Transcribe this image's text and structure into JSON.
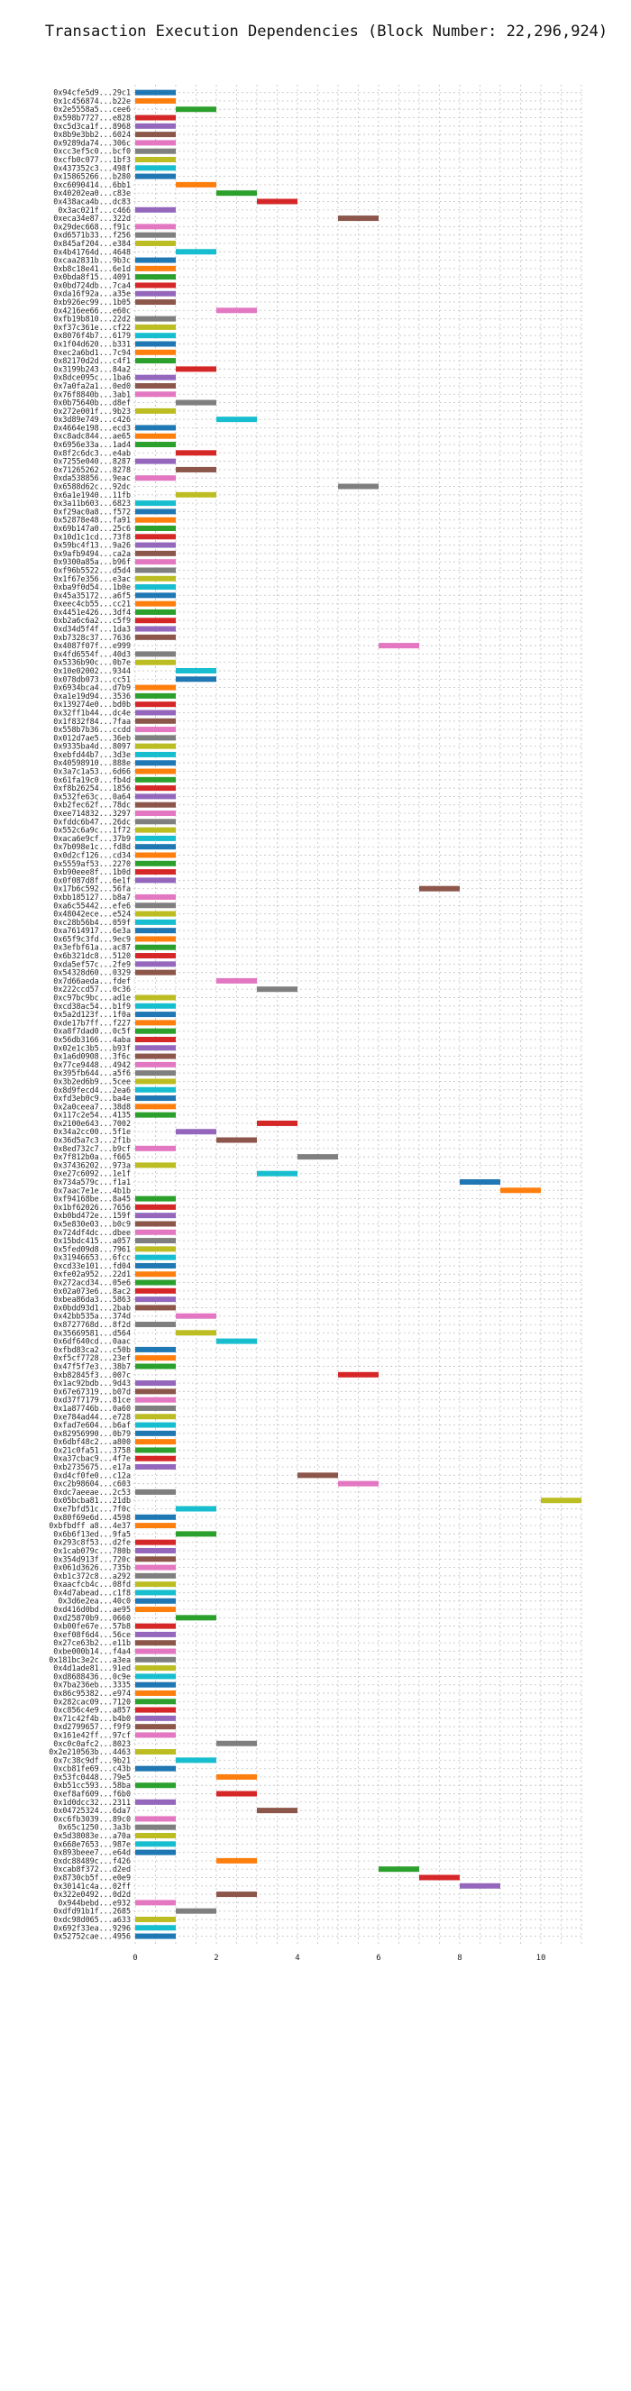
{
  "chart_data": {
    "type": "bar",
    "orientation": "horizontal",
    "title": "Transaction Execution Dependencies (Block Number: 22,296,924)",
    "xlabel": "",
    "ylabel": "",
    "xlim": [
      0,
      11.0
    ],
    "xticks": [
      0,
      2,
      4,
      6,
      8,
      10
    ],
    "grid": true,
    "bar_length": 1,
    "palette": [
      "#1f77b4",
      "#ff7f0e",
      "#2ca02c",
      "#d62728",
      "#9467bd",
      "#8c564b",
      "#e377c2",
      "#7f7f7f",
      "#bcbd22",
      "#17becf"
    ],
    "categories": [
      "0x94cfe5d9...29c1",
      "0x1c456874...b22e",
      "0x2e5558a5...cee6",
      "0x598b7727...e828",
      "0xc5d3ca1f...8968",
      "0x8b9e3bb2...6024",
      "0x9289da74...306c",
      "0xcc3ef5c0...bcf0",
      "0xcfb0c077...1bf3",
      "0x437352c3...498f",
      "0x15865266...b280",
      "0xc6090414...6bb1",
      "0x40202ea0...c83e",
      "0x438aca4b...dc83",
      "0x3ac021f...c466",
      "0xeca34e87...322d",
      "0x29dec668...f91c",
      "0xd6571b33...f256",
      "0x845af204...e384",
      "0x4b41764d...4648",
      "0xcaa2831b...9b3c",
      "0xb8c18e41...6e1d",
      "0x0bda8f15...4091",
      "0x0bd724db...7ca4",
      "0xda16f92a...a35e",
      "0xb926ec99...1b05",
      "0x4216ee66...e60c",
      "0xfb19b810...22d2",
      "0xf37c361e...cf22",
      "0x8076f4b7...6179",
      "0x1f04d620...b331",
      "0xec2a6bd1...7c94",
      "0x82170d2d...c4f1",
      "0x3199b243...84a2",
      "0x8dce095c...1ba6",
      "0x7a0fa2a1...0ed0",
      "0x76f8840b...3ab1",
      "0x0b75640b...d8ef",
      "0x272e001f...9b23",
      "0x3d89e749...c426",
      "0x4664e198...ecd3",
      "0xc8adc844...ae65",
      "0x6956e33a...1ad4",
      "0x8f2c6dc3...e4ab",
      "0x7255e040...8287",
      "0x71265262...8278",
      "0xda538856...9eac",
      "0x6588d62c...92dc",
      "0x6a1e1940...11fb",
      "0x3a11b603...6823",
      "0xf29ac0a8...f572",
      "0x52878e48...fa91",
      "0x69b147a0...25c6",
      "0x10d1c1cd...73f8",
      "0x59bc4f13...9a26",
      "0x9afb9494...ca2a",
      "0x9300a85a...b96f",
      "0xf96b5522...d5d4",
      "0x1f67e356...e3ac",
      "0xba9f0d54...1b0e",
      "0x45a35172...a6f5",
      "0xeec4cb55...cc21",
      "0x4451e426...3df4",
      "0xb2a6c6a2...c5f9",
      "0xd34d5f4f...1da3",
      "0xb7328c37...7636",
      "0x4087f07f...e999",
      "0x4fd6554f...40d3",
      "0x5336b90c...0b7e",
      "0x10e02002...9344",
      "0x078db073...cc51",
      "0x6934bca4...d7b9",
      "0xa1e19d94...3536",
      "0x139274e0...bd0b",
      "0x32ff1b44...dc4e",
      "0x1f832f84...7faa",
      "0x558b7b36...ccdd",
      "0x012d7ae5...36eb",
      "0x9335ba4d...8097",
      "0xebfd44b7...3d3e",
      "0x40598910...888e",
      "0x3a7c1a53...6d66",
      "0x61fa19c0...fb4d",
      "0xf8b26254...1856",
      "0x532fe63c...0a64",
      "0xb2fec62f...78dc",
      "0xee714832...3297",
      "0xfddc6b47...26dc",
      "0x552c6a9c...1f72",
      "0xaca6e9cf...37b9",
      "0x7b098e1c...fd8d",
      "0x0d2cf126...cd34",
      "0x5559af53...2270",
      "0xb90eee8f...1b0d",
      "0x0f087d8f...6e1f",
      "0x17b6c592...56fa",
      "0xbb185127...b8a7",
      "0xa6c55442...efe6",
      "0x48042ece...e524",
      "0xc28b56b4...059f",
      "0xa7614917...6e3a",
      "0x65f9c3fd...9ec9",
      "0x3efbf61a...ac87",
      "0x6b321dc8...5120",
      "0xda5ef57c...2fe9",
      "0x54328d60...0329",
      "0x7d66aeda...fdef",
      "0x222ccd57...0c36",
      "0xc97bc9bc...ad1e",
      "0xcd38ac54...b1f9",
      "0x5a2d123f...1f0a",
      "0xde17b7ff...f227",
      "0xa8f7dad0...0c5f",
      "0x56db3166...4aba",
      "0x02e1c3b5...b93f",
      "0x1a6d0908...3f6c",
      "0x77ce9448...4942",
      "0x395fb644...a5f6",
      "0x3b2ed6b9...5cee",
      "0x8d9fecd4...2ea6",
      "0xfd3eb0c9...ba4e",
      "0x2a0ceea7...38d8",
      "0x117c2e54...4135",
      "0x2100e643...7002",
      "0x34a2cc00...5f1e",
      "0x36d5a7c3...2f1b",
      "0x8ed732c7...b9cf",
      "0x7f812b0a...f665",
      "0x37436202...973a",
      "0xe27c6092...1e1f",
      "0x734a579c...f1a1",
      "0x7aac7e1e...4b1b",
      "0xf94168be...8a45",
      "0x1bf62026...7656",
      "0xb0bd472e...159f",
      "0x5e830e03...b0c9",
      "0x724df4dc...dbee",
      "0x15bdc415...a057",
      "0x5fed09d8...7961",
      "0x31946653...6fcc",
      "0xcd33e101...fd04",
      "0xfe02a952...22d1",
      "0x272acd34...05e6",
      "0x02a073e6...8ac2",
      "0xbea86da3...5863",
      "0x0bdd93d1...2bab",
      "0x42bb535a...374d",
      "0x8727768d...8f2d",
      "0x35669581...d564",
      "0x6df640cd...0aac",
      "0xfbd83ca2...c50b",
      "0xf5cf7728...23ef",
      "0x47f5f7e3...38b7",
      "0xb82845f3...007c",
      "0x1ac92bdb...9d43",
      "0x67e67319...b07d",
      "0xd37f7179...81ce",
      "0x1a87746b...0a60",
      "0xe784ad44...e728",
      "0xfad7e604...b6af",
      "0x82956990...0b79",
      "0x6dbf48c2...a800",
      "0x21c0fa51...3758",
      "0xa37cbac9...4f7e",
      "0xb2735675...e17a",
      "0xd4cf0fe0...c12a",
      "0xc2b98604...c603",
      "0xdc7aeeae...2c53",
      "0x05bcba81...21db",
      "0xe7bfd51c...7f0c",
      "0x80f69e6d...4598",
      "0xbfbdff a8...4e37",
      "0x6b6f13ed...9fa5",
      "0x293c8f53...d2fe",
      "0x1cab079c...780b",
      "0x354d913f...720c",
      "0x061d3626...735b",
      "0xb1c372c8...a292",
      "0xaacfcb4c...08fd",
      "0x4d7abead...c1f8",
      "0x3d6e2ea...40c0",
      "0xd416d0bd...ae95",
      "0xd25870b9...0660",
      "0xb00fe67e...57b8",
      "0xef08f6d4...56ce",
      "0x27ce63b2...e11b",
      "0xbe000b14...f4a4",
      "0x181bc3e2c...a3ea",
      "0x4d1ade81...91ed",
      "0xd8688436...0c9e",
      "0x7ba236eb...3335",
      "0x86c95382...e974",
      "0x282cac09...7120",
      "0xc856c4e9...a857",
      "0x71c42f4b...b4b0",
      "0xd2799657...f9f9",
      "0x161e42ff...97cf",
      "0xc0c0afc2...8023",
      "0x2e210563b...4463",
      "0x7c38c9df...9b21",
      "0xcb81fe69...c43b",
      "0x53fc0448...79e5",
      "0xb51cc593...58ba",
      "0xef8af609...f6b0",
      "0x1d0dcc32...2311",
      "0x04725324...6da7",
      "0xc6fb3039...89c0",
      "0x65c1250...3a3b",
      "0x5d38083e...a70a",
      "0x668e7653...987e",
      "0x893beee7...e64d",
      "0xdc88489c...f426",
      "0xcab8f372...d2ed",
      "0x8730cb5f...e0e9",
      "0x30141c4a...02ff",
      "0x322e0492...0d2d",
      "0x944bebd...e932",
      "0xdfd91b1f...2685",
      "0xdc98d065...a633",
      "0x692f33ea...9296",
      "0x52752cae...4956"
    ],
    "starts": [
      0,
      0,
      1,
      0,
      0,
      0,
      0,
      0,
      0,
      0,
      0,
      1,
      2,
      3,
      0,
      5,
      0,
      0,
      0,
      1,
      0,
      0,
      0,
      0,
      0,
      0,
      2,
      0,
      0,
      0,
      0,
      0,
      0,
      1,
      0,
      0,
      0,
      1,
      0,
      2,
      0,
      0,
      0,
      1,
      0,
      1,
      0,
      5,
      1,
      0,
      0,
      0,
      0,
      0,
      0,
      0,
      0,
      0,
      0,
      0,
      0,
      0,
      0,
      0,
      0,
      0,
      6,
      0,
      0,
      1,
      1,
      0,
      0,
      0,
      0,
      0,
      0,
      0,
      0,
      0,
      0,
      0,
      0,
      0,
      0,
      0,
      0,
      0,
      0,
      0,
      0,
      0,
      0,
      0,
      0,
      7,
      0,
      0,
      0,
      0,
      0,
      0,
      0,
      0,
      0,
      0,
      2,
      3,
      0,
      0,
      0,
      0,
      0,
      0,
      0,
      0,
      0,
      0,
      0,
      0,
      0,
      0,
      0,
      3,
      1,
      2,
      0,
      4,
      0,
      3,
      8,
      9,
      0,
      0,
      0,
      0,
      0,
      0,
      0,
      0,
      0,
      0,
      0,
      0,
      0,
      0,
      1,
      0,
      1,
      2,
      0,
      0,
      0,
      5,
      0,
      0,
      0,
      0,
      0,
      0,
      0,
      0,
      0,
      0,
      0,
      4,
      5,
      0,
      10,
      1,
      0,
      0,
      1,
      0,
      0,
      0,
      0,
      0,
      0,
      0,
      0,
      0,
      1,
      0,
      0,
      0,
      0,
      0,
      0,
      0,
      0,
      0,
      0,
      0,
      0,
      0,
      0,
      2,
      0,
      1,
      0,
      2,
      0,
      2,
      0,
      3,
      0,
      0,
      0,
      0,
      0,
      2,
      6,
      7,
      8,
      2,
      0,
      1,
      0,
      0,
      0
    ],
    "colors": [
      0,
      1,
      2,
      3,
      4,
      5,
      6,
      7,
      8,
      9,
      0,
      1,
      2,
      3,
      4,
      5,
      6,
      7,
      8,
      9,
      0,
      1,
      2,
      3,
      4,
      5,
      6,
      7,
      8,
      9,
      0,
      1,
      2,
      3,
      4,
      5,
      6,
      7,
      8,
      9,
      0,
      1,
      2,
      3,
      4,
      5,
      6,
      7,
      8,
      9,
      0,
      1,
      2,
      3,
      4,
      5,
      6,
      7,
      8,
      9,
      0,
      1,
      2,
      3,
      4,
      5,
      6,
      7,
      8,
      9,
      0,
      1,
      2,
      3,
      4,
      5,
      6,
      7,
      8,
      9,
      0,
      1,
      2,
      3,
      4,
      5,
      6,
      7,
      8,
      9,
      0,
      1,
      2,
      3,
      4,
      5,
      6,
      7,
      8,
      9,
      0,
      1,
      2,
      3,
      4,
      5,
      6,
      7,
      8,
      9,
      0,
      1,
      2,
      3,
      4,
      5,
      6,
      7,
      8,
      9,
      0,
      1,
      2,
      3,
      4,
      5,
      6,
      7,
      8,
      9,
      0,
      1,
      2,
      3,
      4,
      5,
      6,
      7,
      8,
      9,
      0,
      1,
      2,
      3,
      4,
      5,
      6,
      7,
      8,
      9,
      0,
      1,
      2,
      3,
      4,
      5,
      6,
      7,
      8,
      9,
      0,
      1,
      2,
      3,
      4,
      5,
      6,
      7,
      8,
      9,
      0,
      1,
      2,
      3,
      4,
      5,
      6,
      7,
      8,
      9,
      0,
      1,
      2,
      3,
      4,
      5,
      6,
      7,
      8,
      9,
      0,
      1,
      2,
      3,
      4,
      5,
      6,
      7,
      8,
      9,
      0,
      1,
      2,
      3,
      4,
      5,
      6,
      7,
      8,
      9,
      0,
      1,
      2,
      3,
      4,
      5,
      6,
      7,
      8,
      9,
      0
    ]
  }
}
